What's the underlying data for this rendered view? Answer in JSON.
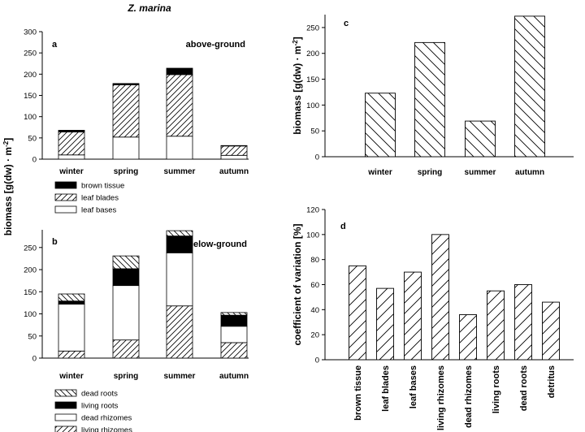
{
  "title": "Z. marina",
  "shared_ylabel": "biomass [g(dw) · m",
  "shared_ylabel_sup": "-2",
  "shared_ylabel_end": "]",
  "chart_data": [
    {
      "id": "a",
      "type": "bar",
      "stacked": true,
      "panel_label": "a",
      "annotation": "above-ground",
      "categories": [
        "winter",
        "spring",
        "summer",
        "autumn"
      ],
      "ylim": [
        0,
        300
      ],
      "yticks": [
        "0",
        "50",
        "100",
        "150",
        "200",
        "250",
        "300"
      ],
      "series": [
        {
          "name": "leaf bases",
          "pattern": "white",
          "values": [
            10,
            52,
            54,
            9
          ]
        },
        {
          "name": "leaf blades",
          "pattern": "hatch-fwd",
          "values": [
            54,
            123,
            145,
            22
          ]
        },
        {
          "name": "brown tissue",
          "pattern": "black",
          "values": [
            4,
            3,
            15,
            1
          ]
        }
      ],
      "legend": [
        "brown tissue",
        "leaf blades",
        "leaf bases"
      ]
    },
    {
      "id": "b",
      "type": "bar",
      "stacked": true,
      "panel_label": "b",
      "annotation": "below-ground",
      "categories": [
        "winter",
        "spring",
        "summer",
        "autumn"
      ],
      "ylim": [
        0,
        290
      ],
      "yticks": [
        "0",
        "50",
        "100",
        "150",
        "200",
        "250"
      ],
      "series": [
        {
          "name": "living rhizomes",
          "pattern": "hatch-fwd",
          "values": [
            16,
            41,
            118,
            35
          ]
        },
        {
          "name": "dead rhizomes",
          "pattern": "white",
          "values": [
            106,
            123,
            120,
            37
          ]
        },
        {
          "name": "living roots",
          "pattern": "black",
          "values": [
            7,
            38,
            38,
            25
          ]
        },
        {
          "name": "dead roots",
          "pattern": "hatch-back",
          "values": [
            16,
            29,
            12,
            6
          ]
        }
      ],
      "legend": [
        "dead roots",
        "living roots",
        "dead rhizomes",
        "living rhizomes"
      ]
    },
    {
      "id": "c",
      "type": "bar",
      "panel_label": "c",
      "categories": [
        "winter",
        "spring",
        "summer",
        "autumn"
      ],
      "values": [
        123,
        221,
        69,
        272
      ],
      "ylim": [
        0,
        275
      ],
      "yticks": [
        "0",
        "50",
        "100",
        "150",
        "200",
        "250"
      ],
      "ylabel": "biomass [g(dw) · m",
      "ylabel_sup": "-2",
      "ylabel_end": "]"
    },
    {
      "id": "d",
      "type": "bar",
      "panel_label": "d",
      "categories": [
        "brown tissue",
        "leaf blades",
        "leaf bases",
        "living rhizomes",
        "dead rhizomes",
        "living roots",
        "dead roots",
        "detritus"
      ],
      "values": [
        75,
        57,
        70,
        100,
        36,
        55,
        60,
        46
      ],
      "ylim": [
        0,
        120
      ],
      "yticks": [
        "0",
        "20",
        "40",
        "60",
        "80",
        "100",
        "120"
      ],
      "ylabel": "coefficient of variation [%]"
    }
  ]
}
